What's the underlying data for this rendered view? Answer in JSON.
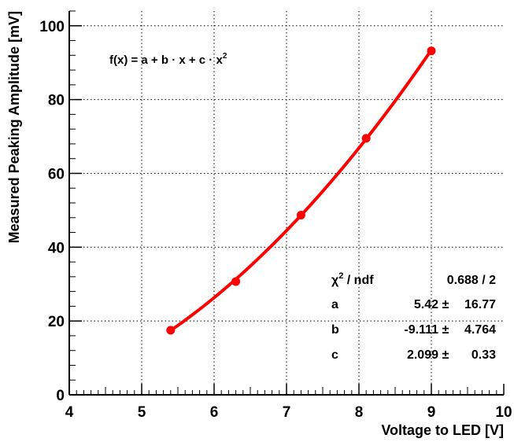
{
  "chart_data": {
    "type": "scatter",
    "xlabel": "Voltage to LED [V]",
    "ylabel": "Measured Peaking Amplitude [mV]",
    "xlim": [
      4,
      10
    ],
    "ylim": [
      0,
      104
    ],
    "x_ticks": [
      "4",
      "5",
      "6",
      "7",
      "8",
      "9",
      "10"
    ],
    "y_ticks": [
      "0",
      "20",
      "40",
      "60",
      "80",
      "100"
    ],
    "grid": true,
    "points": {
      "x": [
        5.4,
        6.3,
        7.2,
        8.1,
        9.0
      ],
      "y": [
        17.5,
        30.7,
        48.7,
        69.5,
        93.2
      ]
    },
    "fit": {
      "formula_text": "f(x) = a + b · x + c · x",
      "formula_superscript": "2",
      "a": 5.42,
      "b": -9.111,
      "c": 2.099,
      "x_range": [
        5.4,
        9.0
      ]
    },
    "stats_box": {
      "rows": [
        {
          "label": "χ",
          "label_sup": "2",
          "label_rest": " / ndf",
          "value": "0.688 / 2"
        },
        {
          "label": "a",
          "value": "5.42",
          "error": "16.77"
        },
        {
          "label": "b",
          "value": "-9.111",
          "error": "4.764"
        },
        {
          "label": "c",
          "value": "2.099",
          "error": "0.33"
        }
      ]
    },
    "colors": {
      "series": "#ff0000",
      "axes": "#000000"
    }
  }
}
